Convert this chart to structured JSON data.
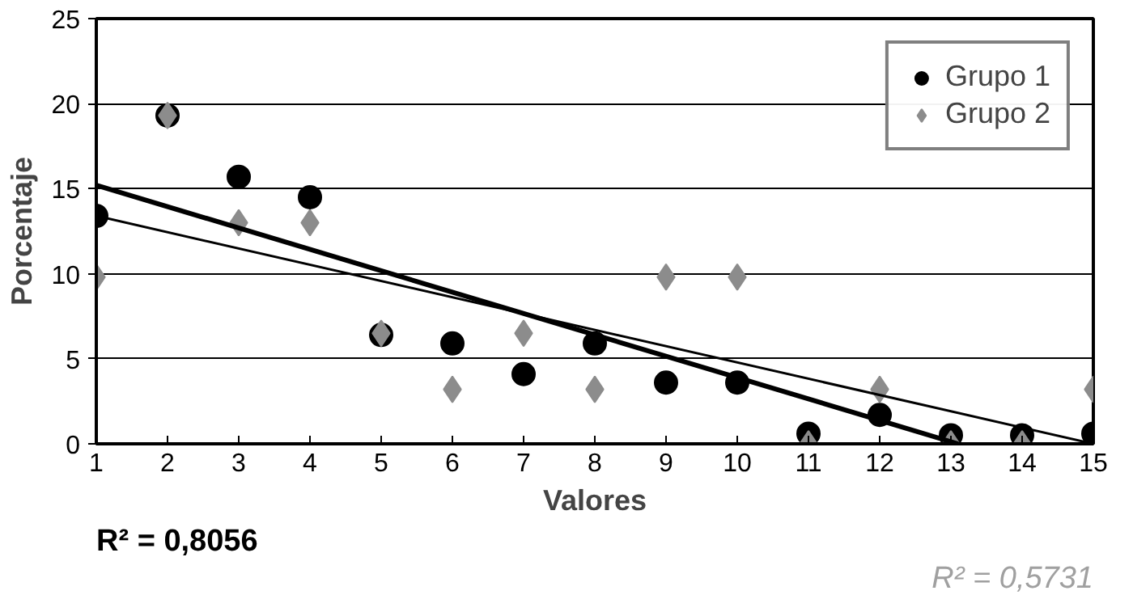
{
  "chart_data": {
    "type": "scatter",
    "xlabel": "Valores",
    "ylabel": "Porcentaje",
    "x": [
      1,
      2,
      3,
      4,
      5,
      6,
      7,
      8,
      9,
      10,
      11,
      12,
      13,
      14,
      15
    ],
    "series": [
      {
        "name": "Grupo 1",
        "color": "#000000",
        "marker": "circle",
        "values": [
          13.4,
          19.3,
          15.7,
          14.5,
          6.4,
          5.9,
          4.1,
          5.9,
          3.6,
          3.6,
          0.6,
          1.7,
          0.5,
          0.5,
          0.6
        ]
      },
      {
        "name": "Grupo 2",
        "color": "#8c8c8c",
        "marker": "diamond",
        "values": [
          9.8,
          19.3,
          13.0,
          13.0,
          6.5,
          3.2,
          6.5,
          3.2,
          9.8,
          9.8,
          0,
          3.2,
          0,
          0,
          3.2
        ]
      },
      {
        "type": "line",
        "color": "#000000",
        "marker": "none",
        "x": [
          1,
          13.1
        ],
        "values": [
          15.2,
          0
        ]
      },
      {
        "type": "line",
        "color": "#000000",
        "marker": "none",
        "x": [
          1,
          15
        ],
        "values": [
          13.4,
          0
        ]
      }
    ],
    "annotations": [
      "R² = 0,8056",
      "R² = 0,5731"
    ],
    "xlim": [
      1,
      15
    ],
    "xticks": [
      1,
      2,
      3,
      4,
      5,
      6,
      7,
      8,
      9,
      10,
      11,
      12,
      13,
      14,
      15
    ],
    "ylim": [
      0,
      25
    ],
    "yticks": [
      0,
      5,
      10,
      15,
      20,
      25
    ],
    "grid": "y",
    "legend": "top right",
    "line_style": "solid"
  }
}
